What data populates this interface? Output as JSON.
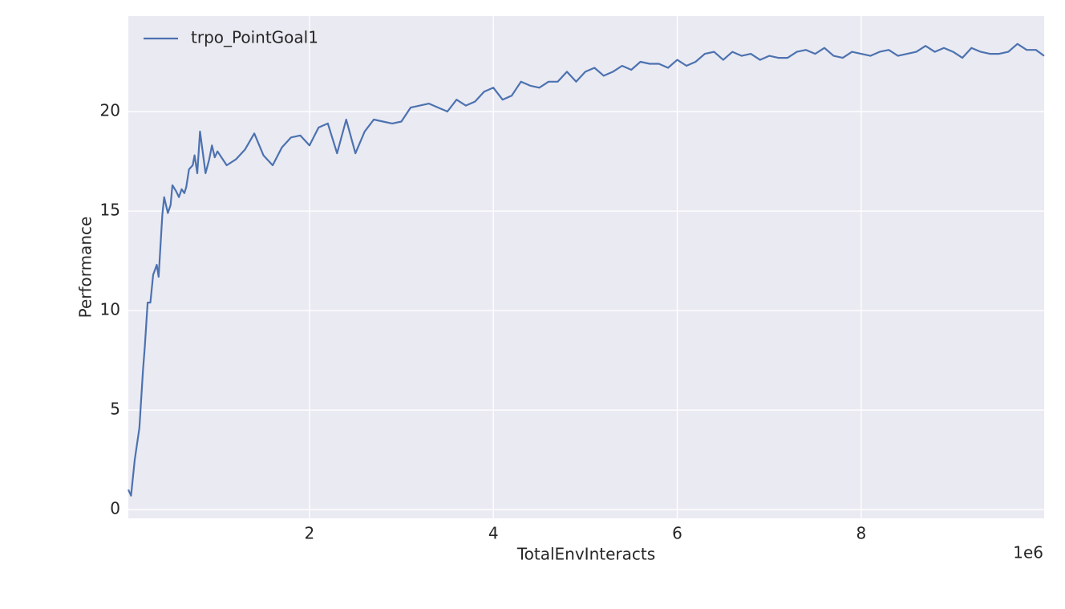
{
  "chart_data": {
    "type": "line",
    "xlabel": "TotalEnvInteracts",
    "ylabel": "Performance",
    "x_offset_label": "1e6",
    "x": [
      0.03,
      0.06,
      0.1,
      0.15,
      0.19,
      0.21,
      0.24,
      0.27,
      0.3,
      0.34,
      0.36,
      0.4,
      0.42,
      0.46,
      0.49,
      0.51,
      0.55,
      0.58,
      0.61,
      0.64,
      0.66,
      0.69,
      0.73,
      0.75,
      0.78,
      0.81,
      0.83,
      0.87,
      0.91,
      0.94,
      0.97,
      1.0,
      1.1,
      1.2,
      1.3,
      1.4,
      1.5,
      1.6,
      1.7,
      1.8,
      1.9,
      2.0,
      2.1,
      2.2,
      2.3,
      2.4,
      2.5,
      2.6,
      2.7,
      2.8,
      2.9,
      3.0,
      3.1,
      3.2,
      3.3,
      3.4,
      3.5,
      3.6,
      3.7,
      3.8,
      3.9,
      4.0,
      4.1,
      4.2,
      4.3,
      4.4,
      4.5,
      4.6,
      4.7,
      4.8,
      4.9,
      5.0,
      5.1,
      5.2,
      5.3,
      5.4,
      5.5,
      5.6,
      5.7,
      5.8,
      5.9,
      6.0,
      6.1,
      6.2,
      6.3,
      6.4,
      6.5,
      6.6,
      6.7,
      6.8,
      6.9,
      7.0,
      7.1,
      7.2,
      7.3,
      7.4,
      7.5,
      7.6,
      7.7,
      7.8,
      7.9,
      8.0,
      8.1,
      8.2,
      8.3,
      8.4,
      8.5,
      8.6,
      8.7,
      8.8,
      8.9,
      9.0,
      9.1,
      9.2,
      9.3,
      9.4,
      9.5,
      9.6,
      9.7,
      9.8,
      9.9,
      9.99
    ],
    "series": [
      {
        "name": "trpo_PointGoal1",
        "color": "#4c72b0",
        "values": [
          1.0,
          0.7,
          2.5,
          4.1,
          7.0,
          8.2,
          10.4,
          10.4,
          11.8,
          12.3,
          11.7,
          14.8,
          15.7,
          14.9,
          15.3,
          16.3,
          16.0,
          15.7,
          16.1,
          15.9,
          16.2,
          17.1,
          17.3,
          17.8,
          16.9,
          19.0,
          18.3,
          16.9,
          17.6,
          18.3,
          17.7,
          18.0,
          17.3,
          17.6,
          18.1,
          18.9,
          17.8,
          17.3,
          18.2,
          18.7,
          18.8,
          18.3,
          19.2,
          19.4,
          17.9,
          19.6,
          17.9,
          19.0,
          19.6,
          19.5,
          19.4,
          19.5,
          20.2,
          20.3,
          20.4,
          20.2,
          20.0,
          20.6,
          20.3,
          20.5,
          21.0,
          21.2,
          20.6,
          20.8,
          21.5,
          21.3,
          21.2,
          21.5,
          21.5,
          22.0,
          21.5,
          22.0,
          22.2,
          21.8,
          22.0,
          22.3,
          22.1,
          22.5,
          22.4,
          22.4,
          22.2,
          22.6,
          22.3,
          22.5,
          22.9,
          23.0,
          22.6,
          23.0,
          22.8,
          22.9,
          22.6,
          22.8,
          22.7,
          22.7,
          23.0,
          23.1,
          22.9,
          23.2,
          22.8,
          22.7,
          23.0,
          22.9,
          22.8,
          23.0,
          23.1,
          22.8,
          22.9,
          23.0,
          23.3,
          23.0,
          23.2,
          23.0,
          22.7,
          23.2,
          23.0,
          22.9,
          22.9,
          23.0,
          23.4,
          23.1,
          23.1,
          22.8
        ]
      }
    ],
    "xlim": [
      0.03,
      9.99
    ],
    "ylim": [
      -0.44,
      24.8
    ],
    "xticks": [
      2,
      4,
      6,
      8
    ],
    "yticks": [
      0,
      5,
      10,
      15,
      20
    ],
    "grid": true,
    "legend": "upper left"
  }
}
